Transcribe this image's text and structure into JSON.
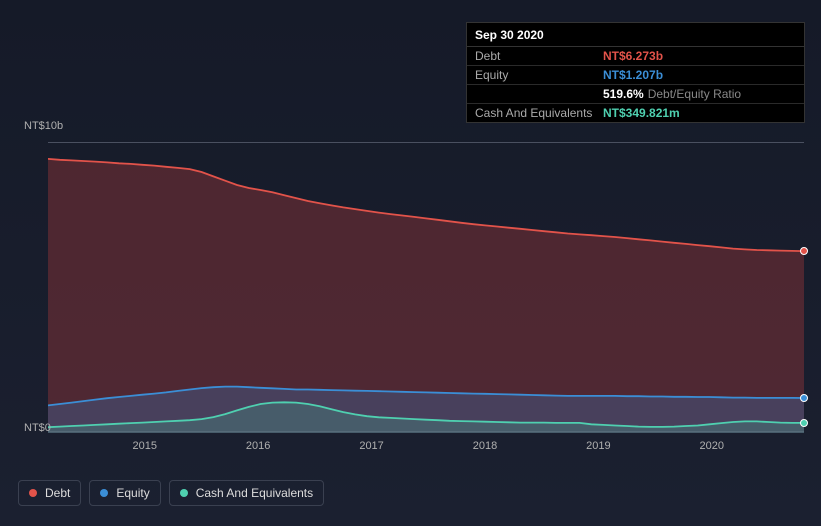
{
  "tooltip": {
    "date": "Sep 30 2020",
    "rows": [
      {
        "label": "Debt",
        "value": "NT$6.273b",
        "color": "#e2534a"
      },
      {
        "label": "Equity",
        "value": "NT$1.207b",
        "color": "#3b8ed6"
      },
      {
        "label": "",
        "value": "519.6%",
        "extra": "Debt/Equity Ratio",
        "color": "#ffffff"
      },
      {
        "label": "Cash And Equivalents",
        "value": "NT$349.821m",
        "color": "#4fd0b0"
      }
    ]
  },
  "chart": {
    "type": "area",
    "background_top": "#151a28",
    "background_bottom": "#1b2030",
    "grid_line_color": "#4a5060",
    "ymin": 0,
    "ymax": 10,
    "ylabel_top": "NT$10b",
    "ylabel_bot": "NT$0",
    "xticks": [
      "2015",
      "2016",
      "2017",
      "2018",
      "2019",
      "2020"
    ],
    "xtick_positions": [
      0.128,
      0.278,
      0.428,
      0.578,
      0.728,
      0.878
    ],
    "series": [
      {
        "name": "Debt",
        "color": "#e2534a",
        "fill": "rgba(180,60,60,0.35)",
        "values": [
          9.45,
          9.42,
          9.4,
          9.38,
          9.36,
          9.33,
          9.3,
          9.28,
          9.25,
          9.22,
          9.18,
          9.14,
          9.1,
          9.0,
          8.85,
          8.7,
          8.55,
          8.45,
          8.38,
          8.3,
          8.2,
          8.1,
          8.0,
          7.92,
          7.85,
          7.78,
          7.72,
          7.66,
          7.6,
          7.55,
          7.5,
          7.45,
          7.4,
          7.35,
          7.3,
          7.25,
          7.2,
          7.16,
          7.12,
          7.08,
          7.04,
          7.0,
          6.96,
          6.92,
          6.88,
          6.85,
          6.82,
          6.79,
          6.76,
          6.72,
          6.68,
          6.64,
          6.6,
          6.56,
          6.52,
          6.48,
          6.44,
          6.4,
          6.36,
          6.33,
          6.31,
          6.3,
          6.29,
          6.28,
          6.273
        ]
      },
      {
        "name": "Equity",
        "color": "#3b8ed6",
        "fill": "rgba(60,110,170,0.35)",
        "values": [
          0.95,
          1.0,
          1.05,
          1.1,
          1.15,
          1.2,
          1.24,
          1.28,
          1.32,
          1.36,
          1.4,
          1.45,
          1.5,
          1.55,
          1.58,
          1.6,
          1.6,
          1.58,
          1.56,
          1.54,
          1.52,
          1.5,
          1.5,
          1.49,
          1.48,
          1.47,
          1.46,
          1.45,
          1.44,
          1.43,
          1.42,
          1.41,
          1.4,
          1.39,
          1.38,
          1.37,
          1.36,
          1.35,
          1.34,
          1.33,
          1.32,
          1.31,
          1.3,
          1.29,
          1.28,
          1.28,
          1.28,
          1.28,
          1.28,
          1.27,
          1.27,
          1.26,
          1.26,
          1.25,
          1.25,
          1.24,
          1.24,
          1.23,
          1.22,
          1.22,
          1.21,
          1.21,
          1.21,
          1.21,
          1.207
        ]
      },
      {
        "name": "Cash And Equivalents",
        "color": "#4fd0b0",
        "fill": "rgba(70,160,140,0.3)",
        "values": [
          0.2,
          0.22,
          0.24,
          0.26,
          0.28,
          0.3,
          0.32,
          0.34,
          0.36,
          0.38,
          0.4,
          0.42,
          0.44,
          0.48,
          0.55,
          0.65,
          0.78,
          0.9,
          1.0,
          1.05,
          1.06,
          1.05,
          1.0,
          0.92,
          0.82,
          0.72,
          0.64,
          0.58,
          0.54,
          0.52,
          0.5,
          0.48,
          0.46,
          0.44,
          0.42,
          0.41,
          0.4,
          0.39,
          0.38,
          0.37,
          0.36,
          0.36,
          0.36,
          0.35,
          0.35,
          0.35,
          0.3,
          0.28,
          0.26,
          0.24,
          0.22,
          0.21,
          0.21,
          0.22,
          0.24,
          0.26,
          0.3,
          0.34,
          0.38,
          0.4,
          0.4,
          0.38,
          0.36,
          0.35,
          0.349
        ]
      }
    ]
  },
  "legend": {
    "items": [
      {
        "label": "Debt",
        "color": "#e2534a"
      },
      {
        "label": "Equity",
        "color": "#3b8ed6"
      },
      {
        "label": "Cash And Equivalents",
        "color": "#4fd0b0"
      }
    ]
  }
}
